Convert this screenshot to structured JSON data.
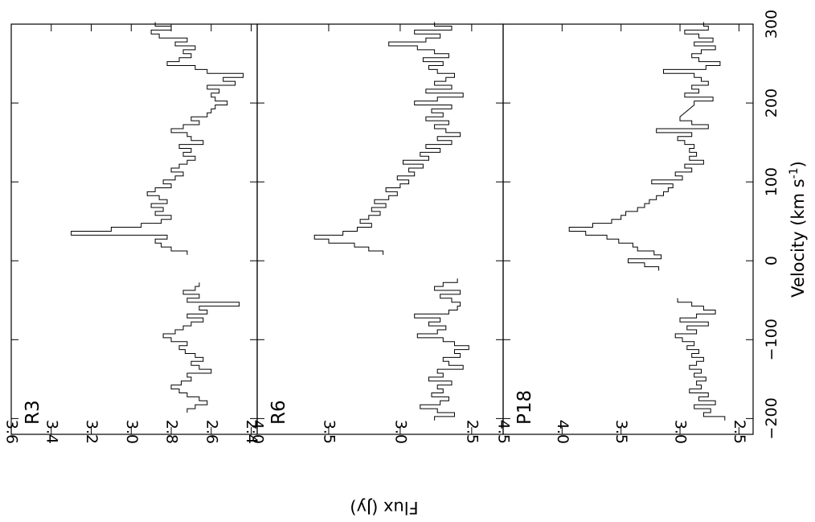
{
  "chart_data": {
    "type": "line",
    "orientation": "rotated-90",
    "x_axis": {
      "label_main": "Velocity (km s",
      "label_sup": "-1",
      "label_close": ")",
      "range": [
        -220,
        300
      ],
      "ticks": [
        -200,
        -100,
        0,
        100,
        200,
        300
      ],
      "tick_labels": [
        "−200",
        "−100",
        "0",
        "100",
        "200",
        "300"
      ]
    },
    "y_axis": {
      "label": "Flux (Jy)"
    },
    "panels": [
      {
        "label": "R3",
        "ylim": [
          2.37,
          3.6
        ],
        "ticks": [
          2.4,
          2.6,
          2.8,
          3.0,
          3.2,
          3.4,
          3.6
        ],
        "tick_labels": [
          "2.4",
          "2.6",
          "2.8",
          "3.0",
          "3.2",
          "3.4",
          "3.6"
        ],
        "segments": [
          {
            "x": [
              -190,
              -185,
              -180,
              -175,
              -170,
              -165,
              -160,
              -155,
              -150,
              -145,
              -140,
              -135,
              -130,
              -125,
              -120,
              -115,
              -110,
              -105,
              -100,
              -95,
              -90,
              -85,
              -80,
              -75,
              -70,
              -65,
              -60,
              -55,
              -50,
              -45,
              -40,
              -35,
              -30
            ],
            "y": [
              2.72,
              2.68,
              2.62,
              2.66,
              2.72,
              2.76,
              2.8,
              2.75,
              2.7,
              2.72,
              2.6,
              2.66,
              2.7,
              2.64,
              2.68,
              2.73,
              2.76,
              2.72,
              2.8,
              2.84,
              2.78,
              2.74,
              2.7,
              2.64,
              2.72,
              2.62,
              2.66,
              2.46,
              2.72,
              2.66,
              2.74,
              2.68,
              2.66
            ]
          },
          {
            "x": [
              10,
              15,
              20,
              25,
              30,
              35,
              40,
              45,
              50,
              55,
              60,
              65,
              70,
              75,
              80,
              85,
              90,
              95,
              100,
              105,
              110,
              115,
              120,
              125,
              130,
              135,
              140,
              145,
              150,
              155,
              160,
              165,
              170,
              175,
              180,
              185,
              190,
              195,
              200,
              205,
              210,
              215,
              220,
              225,
              230,
              235,
              240,
              245,
              250,
              255,
              260,
              265,
              270,
              275,
              280,
              285,
              290,
              295,
              300
            ],
            "y": [
              2.72,
              2.8,
              2.85,
              2.88,
              2.82,
              3.3,
              3.1,
              2.95,
              2.85,
              2.8,
              2.88,
              2.84,
              2.9,
              2.82,
              2.86,
              2.92,
              2.88,
              2.8,
              2.84,
              2.78,
              2.74,
              2.8,
              2.76,
              2.72,
              2.68,
              2.74,
              2.7,
              2.76,
              2.64,
              2.7,
              2.72,
              2.8,
              2.74,
              2.66,
              2.7,
              2.62,
              2.6,
              2.58,
              2.52,
              2.58,
              2.6,
              2.56,
              2.62,
              2.48,
              2.54,
              2.44,
              2.62,
              2.68,
              2.82,
              2.76,
              2.7,
              2.74,
              2.68,
              2.78,
              2.72,
              2.86,
              2.9,
              2.8,
              2.88
            ]
          }
        ]
      },
      {
        "label": "R6",
        "ylim": [
          2.28,
          4.0
        ],
        "ticks": [
          2.5,
          3.0,
          3.5,
          4.0
        ],
        "tick_labels": [
          "2.5",
          "3.0",
          "3.5",
          "4.0"
        ],
        "segments": [
          {
            "x": [
              -200,
              -195,
              -190,
              -185,
              -180,
              -175,
              -170,
              -165,
              -160,
              -155,
              -150,
              -145,
              -140,
              -135,
              -130,
              -125,
              -120,
              -115,
              -110,
              -105,
              -100,
              -95,
              -90,
              -85,
              -80,
              -75,
              -70,
              -65,
              -60,
              -55,
              -50,
              -45,
              -40,
              -35,
              -30,
              -25
            ],
            "y": [
              2.76,
              2.62,
              2.74,
              2.86,
              2.72,
              2.66,
              2.78,
              2.7,
              2.74,
              2.64,
              2.8,
              2.7,
              2.74,
              2.56,
              2.66,
              2.7,
              2.58,
              2.62,
              2.52,
              2.62,
              2.7,
              2.88,
              2.74,
              2.68,
              2.8,
              2.72,
              2.9,
              2.66,
              2.6,
              2.58,
              2.64,
              2.72,
              2.58,
              2.76,
              2.7,
              2.6
            ]
          },
          {
            "x": [
              10,
              15,
              20,
              25,
              30,
              35,
              40,
              45,
              50,
              55,
              60,
              65,
              70,
              75,
              80,
              85,
              90,
              95,
              100,
              105,
              110,
              115,
              120,
              125,
              130,
              135,
              140,
              145,
              150,
              155,
              160,
              165,
              170,
              175,
              180,
              185,
              190,
              195,
              200,
              205,
              210,
              215,
              220,
              225,
              230,
              235,
              240,
              245,
              250,
              255,
              260,
              265,
              270,
              275,
              280,
              285,
              290,
              295,
              300
            ],
            "y": [
              3.12,
              3.22,
              3.32,
              3.5,
              3.6,
              3.4,
              3.3,
              3.2,
              3.28,
              3.22,
              3.14,
              3.2,
              3.1,
              3.18,
              3.08,
              3.02,
              3.1,
              3.0,
              2.94,
              3.02,
              2.9,
              2.94,
              2.84,
              2.98,
              2.8,
              2.86,
              2.72,
              2.82,
              2.64,
              2.74,
              2.58,
              2.68,
              2.76,
              2.66,
              2.82,
              2.7,
              2.78,
              2.64,
              2.9,
              2.74,
              2.56,
              2.82,
              2.64,
              2.76,
              2.68,
              2.62,
              2.74,
              2.8,
              2.7,
              2.84,
              2.66,
              2.76,
              2.88,
              3.08,
              2.82,
              2.72,
              2.9,
              2.64,
              2.76
            ]
          }
        ]
      },
      {
        "label": "P18",
        "ylim": [
          2.38,
          4.5
        ],
        "ticks": [
          2.5,
          3.0,
          3.5,
          4.0,
          4.5
        ],
        "tick_labels": [
          "2.5",
          "3.0",
          "3.5",
          "4.0",
          "4.5"
        ],
        "segments": [
          {
            "x": [
              -200,
              -195,
              -190,
              -185,
              -180,
              -175,
              -170,
              -165,
              -160,
              -155,
              -150,
              -145,
              -140,
              -135,
              -130,
              -125,
              -120,
              -115,
              -110,
              -105,
              -100,
              -95,
              -90,
              -85,
              -80,
              -75,
              -70,
              -65,
              -60,
              -55,
              -50
            ],
            "y": [
              2.62,
              2.8,
              2.74,
              2.88,
              2.7,
              2.84,
              2.76,
              2.92,
              2.82,
              2.86,
              2.78,
              2.88,
              2.82,
              2.92,
              2.86,
              2.8,
              2.9,
              2.84,
              2.94,
              2.88,
              2.98,
              3.04,
              2.86,
              2.94,
              2.76,
              3.0,
              2.86,
              2.7,
              2.8,
              2.9,
              3.02
            ]
          },
          {
            "x": [
              -10,
              -5,
              0,
              5,
              10,
              15,
              20,
              25,
              30,
              35,
              40,
              45,
              50,
              55,
              60,
              65,
              70,
              75,
              80,
              85,
              90,
              95,
              100,
              105,
              110,
              115,
              120,
              125,
              130,
              135,
              140,
              145,
              150,
              155,
              160,
              165,
              170,
              175,
              180,
              200,
              205,
              210,
              215,
              220,
              225,
              230,
              235,
              240,
              245,
              250,
              255,
              260,
              265,
              270,
              275,
              280,
              285,
              290,
              295,
              300
            ],
            "y": [
              3.18,
              3.3,
              3.44,
              3.16,
              3.22,
              3.36,
              3.4,
              3.52,
              3.62,
              3.8,
              3.94,
              3.74,
              3.58,
              3.5,
              3.46,
              3.36,
              3.3,
              3.26,
              3.2,
              3.14,
              3.1,
              3.06,
              3.24,
              2.98,
              3.04,
              2.9,
              2.96,
              2.8,
              2.92,
              2.86,
              2.92,
              2.88,
              2.96,
              3.02,
              2.9,
              3.2,
              2.76,
              2.9,
              3.0,
              2.88,
              2.72,
              2.96,
              2.84,
              2.9,
              2.76,
              2.82,
              2.88,
              3.14,
              2.78,
              2.66,
              2.84,
              2.9,
              2.82,
              2.7,
              2.88,
              2.72,
              2.84,
              2.96,
              2.76,
              2.8
            ]
          }
        ]
      }
    ]
  }
}
